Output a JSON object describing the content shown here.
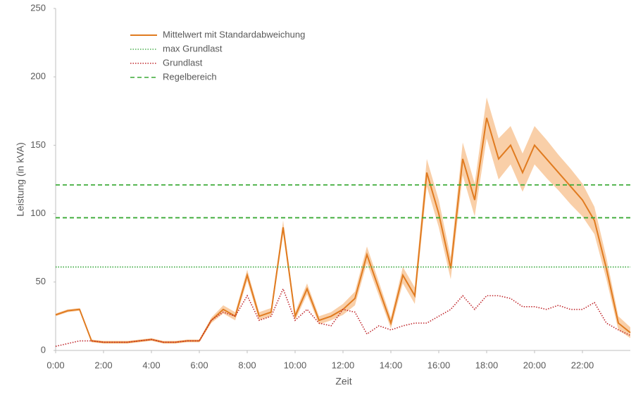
{
  "chart_data": {
    "type": "line",
    "x_label": "Zeit",
    "y_label": "Leistung (in kVA)",
    "x": [
      0,
      0.5,
      1,
      1.5,
      2,
      2.5,
      3,
      3.5,
      4,
      4.5,
      5,
      5.5,
      6,
      6.5,
      7,
      7.5,
      8,
      8.5,
      9,
      9.5,
      10,
      10.5,
      11,
      11.5,
      12,
      12.5,
      13,
      13.5,
      14,
      14.5,
      15,
      15.5,
      16,
      16.5,
      17,
      17.5,
      18,
      18.5,
      19,
      19.5,
      20,
      20.5,
      21,
      21.5,
      22,
      22.5,
      23,
      23.5,
      24
    ],
    "xlim": [
      0,
      24
    ],
    "xticks": [
      {
        "value": 0,
        "label": "0:00"
      },
      {
        "value": 2,
        "label": "2:00"
      },
      {
        "value": 4,
        "label": "4:00"
      },
      {
        "value": 6,
        "label": "6:00"
      },
      {
        "value": 8,
        "label": "8:00"
      },
      {
        "value": 10,
        "label": "10:00"
      },
      {
        "value": 12,
        "label": "12:00"
      },
      {
        "value": 14,
        "label": "14:00"
      },
      {
        "value": 16,
        "label": "16:00"
      },
      {
        "value": 18,
        "label": "18:00"
      },
      {
        "value": 20,
        "label": "20:00"
      },
      {
        "value": 22,
        "label": "22:00"
      }
    ],
    "ylim": [
      0,
      250
    ],
    "yticks": [
      0,
      50,
      100,
      150,
      200,
      250
    ],
    "legend": "top-left",
    "series": [
      {
        "name": "Mittelwert mit Standardabweichung",
        "color": "#e07b20",
        "band_color": "#f9cfa8",
        "style": "solid",
        "values": [
          26,
          29,
          30,
          7,
          6,
          6,
          6,
          7,
          8,
          6,
          6,
          7,
          7,
          22,
          30,
          25,
          55,
          25,
          28,
          90,
          25,
          45,
          22,
          25,
          30,
          38,
          70,
          45,
          20,
          55,
          40,
          130,
          100,
          60,
          140,
          110,
          170,
          140,
          150,
          130,
          150,
          140,
          130,
          120,
          110,
          95,
          60,
          20,
          13
        ],
        "std": [
          1,
          1,
          1,
          1,
          1,
          1,
          1,
          1,
          1,
          1,
          1,
          1,
          1,
          2,
          3,
          3,
          4,
          3,
          3,
          5,
          3,
          4,
          3,
          3,
          4,
          5,
          6,
          5,
          4,
          6,
          6,
          10,
          10,
          8,
          12,
          12,
          15,
          15,
          14,
          14,
          14,
          14,
          13,
          13,
          12,
          10,
          8,
          5,
          4
        ]
      },
      {
        "name": "max Grundlast",
        "color": "#4cb050",
        "style": "dotted",
        "levels": [
          61
        ]
      },
      {
        "name": "Grundlast",
        "color": "#c0282d",
        "style": "dotted",
        "values": [
          3,
          5,
          7,
          7,
          6,
          6,
          6,
          7,
          8,
          6,
          6,
          7,
          7,
          22,
          28,
          25,
          40,
          22,
          25,
          45,
          22,
          30,
          20,
          18,
          30,
          28,
          12,
          18,
          15,
          18,
          20,
          20,
          25,
          30,
          40,
          30,
          40,
          40,
          38,
          32,
          32,
          30,
          33,
          30,
          30,
          35,
          20,
          15,
          11
        ]
      },
      {
        "name": "Regelbereich",
        "color": "#3aaa35",
        "style": "dashed",
        "levels": [
          97,
          121
        ]
      }
    ]
  }
}
